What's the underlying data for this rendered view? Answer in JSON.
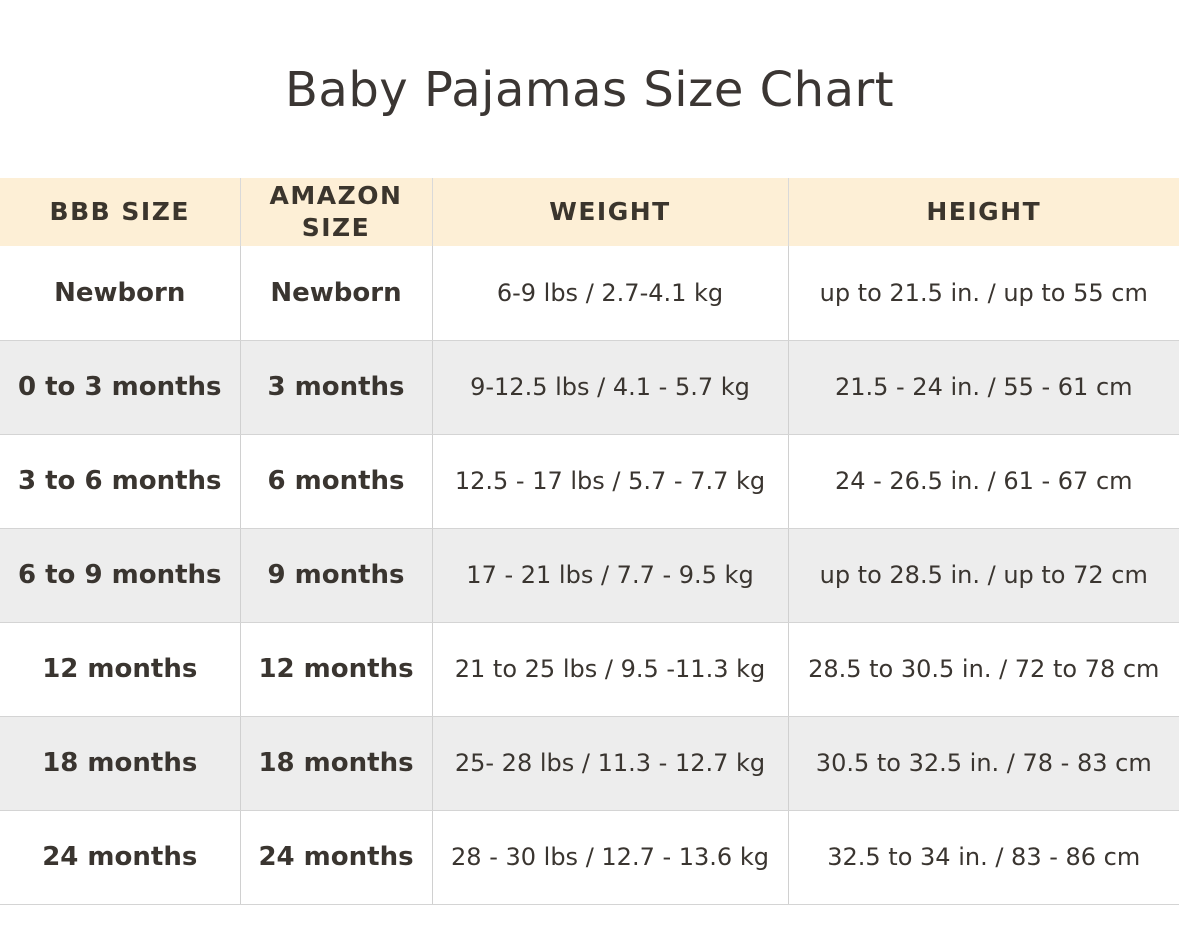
{
  "title": "Baby Pajamas Size Chart",
  "table": {
    "headers": {
      "bbb_size": "BBB SIZE",
      "amazon_size_line1": "AMAZON",
      "amazon_size_line2": "SIZE",
      "weight": "WEIGHT",
      "height": "HEIGHT"
    },
    "rows": [
      {
        "bbb": "Newborn",
        "amazon": "Newborn",
        "weight": "6-9 lbs / 2.7-4.1 kg",
        "height": "up to 21.5 in. / up to 55 cm"
      },
      {
        "bbb": "0 to 3 months",
        "amazon": "3 months",
        "weight": "9-12.5 lbs / 4.1 - 5.7 kg",
        "height": "21.5 - 24 in. / 55 - 61 cm"
      },
      {
        "bbb": "3 to 6 months",
        "amazon": "6 months",
        "weight": "12.5 - 17 lbs / 5.7 - 7.7 kg",
        "height": "24 - 26.5 in. / 61 - 67 cm"
      },
      {
        "bbb": "6 to 9 months",
        "amazon": "9 months",
        "weight": "17 - 21 lbs / 7.7 - 9.5 kg",
        "height": "up to 28.5 in. / up to 72 cm"
      },
      {
        "bbb": "12 months",
        "amazon": "12 months",
        "weight": "21 to 25 lbs / 9.5 -11.3 kg",
        "height": "28.5 to 30.5 in. / 72 to 78 cm"
      },
      {
        "bbb": "18 months",
        "amazon": "18 months",
        "weight": "25- 28 lbs / 11.3 - 12.7 kg",
        "height": "30.5 to 32.5 in. / 78 - 83 cm"
      },
      {
        "bbb": "24 months",
        "amazon": "24 months",
        "weight": "28 - 30 lbs / 12.7 - 13.6 kg",
        "height": "32.5 to 34 in. / 83 - 86 cm"
      }
    ]
  },
  "colors": {
    "header_bg": "#fdefd6",
    "alt_row_bg": "#ededed",
    "text": "#3a3530"
  }
}
